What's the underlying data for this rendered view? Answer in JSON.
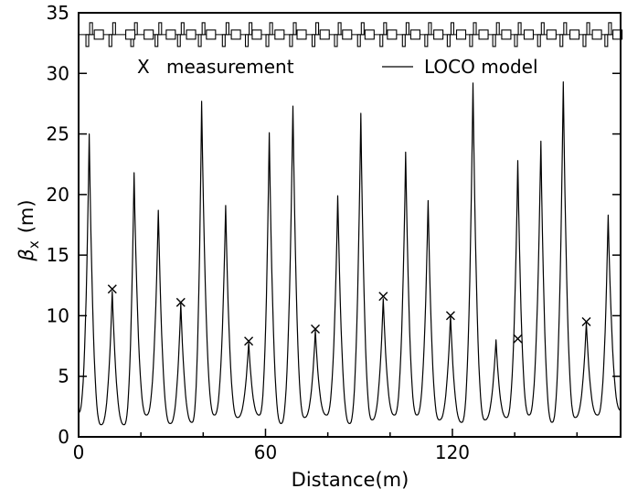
{
  "chart_data": {
    "type": "line",
    "xlabel": "Distance(m)",
    "ylabel_symbol": "β",
    "ylabel_subscript": "x",
    "ylabel_unit": "(m)",
    "xlim": [
      0,
      174
    ],
    "ylim": [
      0,
      35
    ],
    "x_ticks": [
      0,
      60,
      120
    ],
    "y_ticks": [
      0,
      5,
      10,
      15,
      20,
      25,
      30,
      35
    ],
    "grid": false,
    "legend_position": "top",
    "legend": {
      "marker_label": "X",
      "measurement_label": "measurement",
      "model_label": "LOCO model"
    },
    "series": [
      {
        "name": "LOCO model",
        "style": "line",
        "peaks": [
          {
            "x": 3.4,
            "y": 25.0
          },
          {
            "x": 10.8,
            "y": 12.0
          },
          {
            "x": 17.8,
            "y": 21.8
          },
          {
            "x": 25.6,
            "y": 18.7
          },
          {
            "x": 32.8,
            "y": 11.0
          },
          {
            "x": 39.5,
            "y": 27.7
          },
          {
            "x": 47.2,
            "y": 19.1
          },
          {
            "x": 54.6,
            "y": 7.8
          },
          {
            "x": 61.2,
            "y": 25.1
          },
          {
            "x": 68.8,
            "y": 27.3
          },
          {
            "x": 76.0,
            "y": 8.8
          },
          {
            "x": 83.2,
            "y": 19.9
          },
          {
            "x": 90.6,
            "y": 26.7
          },
          {
            "x": 97.8,
            "y": 11.4
          },
          {
            "x": 105.0,
            "y": 23.5
          },
          {
            "x": 112.2,
            "y": 19.5
          },
          {
            "x": 119.4,
            "y": 10.0
          },
          {
            "x": 126.6,
            "y": 29.2
          },
          {
            "x": 134.0,
            "y": 8.0
          },
          {
            "x": 141.0,
            "y": 22.8
          },
          {
            "x": 148.4,
            "y": 24.4
          },
          {
            "x": 155.6,
            "y": 29.3
          },
          {
            "x": 163.0,
            "y": 9.4
          },
          {
            "x": 170.0,
            "y": 18.3
          }
        ],
        "valleys": [
          {
            "x": 0.0,
            "y": 2.0
          },
          {
            "x": 7.2,
            "y": 1.0
          },
          {
            "x": 14.6,
            "y": 1.0
          },
          {
            "x": 21.8,
            "y": 1.8
          },
          {
            "x": 29.4,
            "y": 1.1
          },
          {
            "x": 36.4,
            "y": 1.2
          },
          {
            "x": 43.6,
            "y": 1.8
          },
          {
            "x": 51.0,
            "y": 1.6
          },
          {
            "x": 58.0,
            "y": 1.8
          },
          {
            "x": 65.0,
            "y": 1.1
          },
          {
            "x": 72.5,
            "y": 1.6
          },
          {
            "x": 79.6,
            "y": 1.8
          },
          {
            "x": 87.0,
            "y": 1.1
          },
          {
            "x": 94.2,
            "y": 1.4
          },
          {
            "x": 101.4,
            "y": 1.8
          },
          {
            "x": 108.6,
            "y": 1.8
          },
          {
            "x": 115.8,
            "y": 1.4
          },
          {
            "x": 123.0,
            "y": 1.2
          },
          {
            "x": 130.4,
            "y": 1.4
          },
          {
            "x": 137.4,
            "y": 1.6
          },
          {
            "x": 144.6,
            "y": 1.8
          },
          {
            "x": 152.0,
            "y": 1.2
          },
          {
            "x": 159.4,
            "y": 1.6
          },
          {
            "x": 166.6,
            "y": 1.8
          },
          {
            "x": 174.0,
            "y": 2.2
          }
        ]
      },
      {
        "name": "measurement",
        "style": "markers",
        "points": [
          {
            "x": 10.8,
            "y": 12.2
          },
          {
            "x": 32.8,
            "y": 11.1
          },
          {
            "x": 54.6,
            "y": 7.9
          },
          {
            "x": 76.0,
            "y": 8.9
          },
          {
            "x": 97.8,
            "y": 11.6
          },
          {
            "x": 119.4,
            "y": 10.0
          },
          {
            "x": 141.0,
            "y": 8.1
          },
          {
            "x": 163.0,
            "y": 9.5
          }
        ]
      }
    ],
    "lattice": {
      "baseline_y": 33.2,
      "magnet_boxes_x": [
        6.5,
        16.6,
        22.5,
        29.6,
        36.1,
        42.5,
        50.5,
        57.2,
        64.5,
        71.6,
        79.0,
        86.2,
        93.4,
        100.6,
        108.1,
        115.5,
        122.8,
        130.0,
        137.3,
        144.5,
        151.8,
        159.2,
        166.4,
        173.0
      ],
      "quad_up_x": [
        4.0,
        11.4,
        18.4,
        26.2,
        33.4,
        40.1,
        47.8,
        55.2,
        61.8,
        69.4,
        76.6,
        83.8,
        91.2,
        98.4,
        105.6,
        112.8,
        120.0,
        127.2,
        134.6,
        141.6,
        149.0,
        156.2,
        163.6,
        170.6
      ],
      "quad_down_x": [
        2.8,
        10.2,
        17.2,
        25.0,
        32.2,
        38.9,
        46.6,
        54.0,
        60.6,
        68.2,
        75.4,
        82.6,
        90.0,
        97.2,
        104.4,
        111.6,
        118.8,
        126.0,
        133.4,
        140.4,
        147.8,
        155.0,
        162.4,
        169.4
      ]
    }
  }
}
